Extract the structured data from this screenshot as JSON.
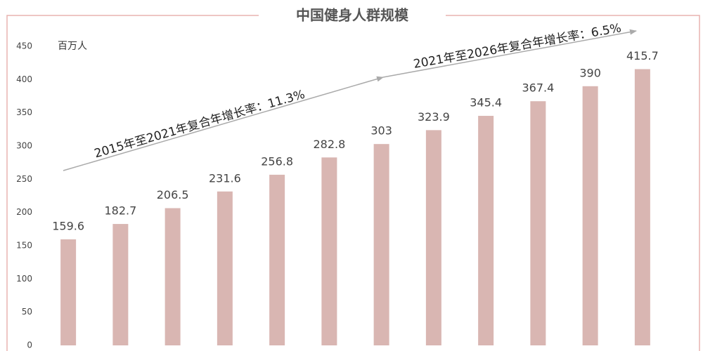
{
  "chart_data": {
    "type": "bar",
    "title": "中国健身人群规模",
    "y_axis_label": "百万人",
    "annotations": [
      "2015年至2021年复合年增长率：11.3%",
      "2021年至2026年复合年增长率：6.5%"
    ],
    "categories": [
      null,
      null,
      null,
      null,
      null,
      null,
      null,
      null,
      null,
      null,
      null,
      null
    ],
    "values": [
      159.6,
      182.7,
      206.5,
      231.6,
      256.8,
      282.8,
      303,
      323.9,
      345.4,
      367.4,
      390,
      415.7
    ],
    "color": "#d9b6b2",
    "ylim": [
      0,
      450
    ],
    "yticks": [
      0,
      50,
      100,
      150,
      200,
      250,
      300,
      350,
      400,
      450
    ],
    "grid": false
  }
}
